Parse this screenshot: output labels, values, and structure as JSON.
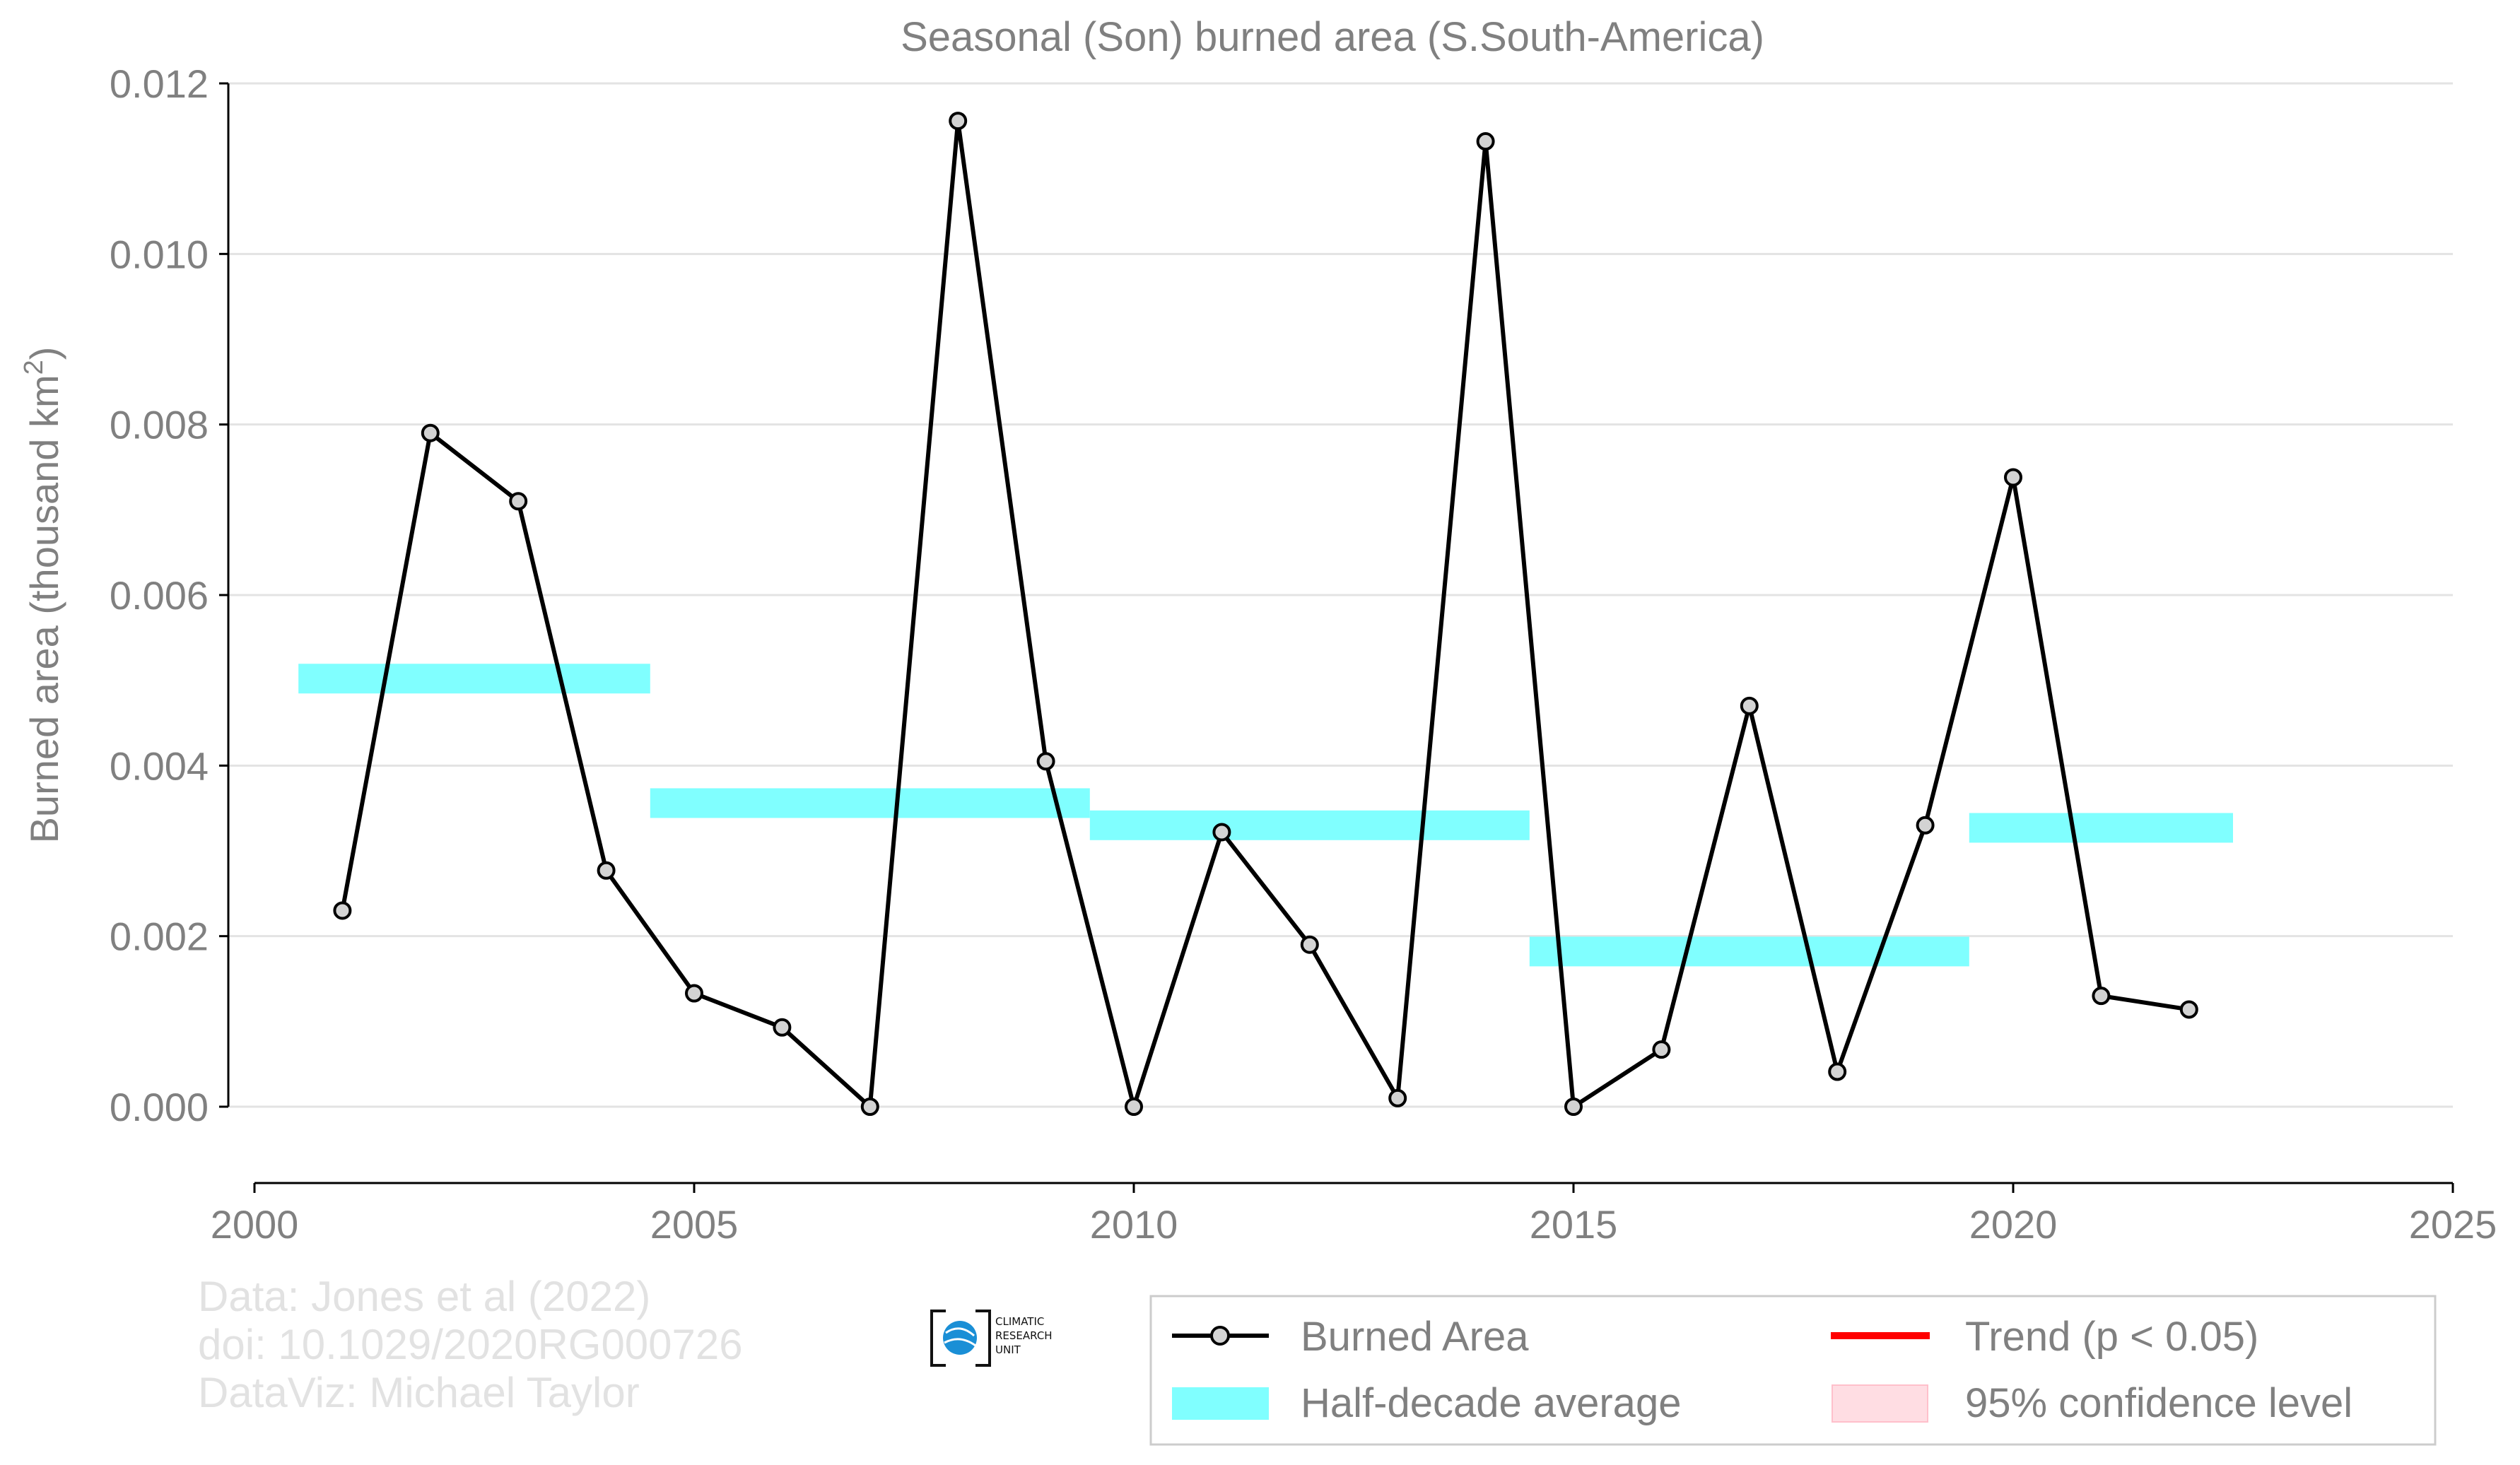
{
  "chart_data": {
    "type": "line",
    "title": "Seasonal (Son) burned area (S.South-America)",
    "ylabel": "Burned area (thousand km",
    "ylabel_sup": "2",
    "ylabel_close": ")",
    "xlim": [
      2000,
      2025
    ],
    "ylim": [
      -0.00085,
      0.012
    ],
    "xticks": [
      2000,
      2005,
      2010,
      2015,
      2020,
      2025
    ],
    "yticks": [
      0.0,
      0.002,
      0.004,
      0.006,
      0.008,
      0.01,
      0.012
    ],
    "xtick_labels": [
      "2000",
      "2005",
      "2010",
      "2015",
      "2020",
      "2025"
    ],
    "ytick_labels": [
      "0.000",
      "0.002",
      "0.004",
      "0.006",
      "0.008",
      "0.010",
      "0.012"
    ],
    "grid": "horizontal",
    "series": [
      {
        "name": "Burned Area",
        "color": "#000000",
        "marker_fill": "#d3d3d3",
        "x": [
          2001,
          2002,
          2003,
          2004,
          2005,
          2006,
          2007,
          2008,
          2009,
          2010,
          2011,
          2012,
          2013,
          2014,
          2015,
          2016,
          2017,
          2018,
          2019,
          2020,
          2021,
          2022
        ],
        "y": [
          0.0023,
          0.0079,
          0.0071,
          0.00277,
          0.00133,
          0.00093,
          0.0,
          0.01156,
          0.00405,
          0.0,
          0.00322,
          0.0019,
          0.0001,
          0.01132,
          0.0,
          0.00067,
          0.0047,
          0.00041,
          0.0033,
          0.00738,
          0.0013,
          0.00114
        ]
      }
    ],
    "half_decade_average": {
      "name": "Half-decade average",
      "color": "#80ffff",
      "segments": [
        {
          "x0": 2000.5,
          "x1": 2004.5,
          "y": 0.00502
        },
        {
          "x0": 2004.5,
          "x1": 2009.5,
          "y": 0.00356
        },
        {
          "x0": 2009.5,
          "x1": 2014.5,
          "y": 0.0033
        },
        {
          "x0": 2014.5,
          "x1": 2019.5,
          "y": 0.00182
        },
        {
          "x0": 2019.5,
          "x1": 2022.5,
          "y": 0.00327
        }
      ]
    },
    "legend": {
      "position": "bottom-right",
      "entries": [
        {
          "label": "Burned Area",
          "kind": "line-marker",
          "color": "#000000"
        },
        {
          "label": "Trend (p < 0.05)",
          "kind": "line",
          "color": "#ff0000"
        },
        {
          "label": "Half-decade average",
          "kind": "band",
          "color": "#80ffff"
        },
        {
          "label": "95% confidence level",
          "kind": "box",
          "color": "#ffdde3"
        }
      ]
    }
  },
  "credits": {
    "line1": "Data: Jones et al (2022)",
    "line2": "doi: 10.1029/2020RG000726",
    "line3": "DataViz: Michael Taylor"
  },
  "logo": {
    "icon": "climatic-research-unit-globe-icon",
    "line1": "CLIMATIC",
    "line2": "RESEARCH",
    "line3": "UNIT"
  }
}
